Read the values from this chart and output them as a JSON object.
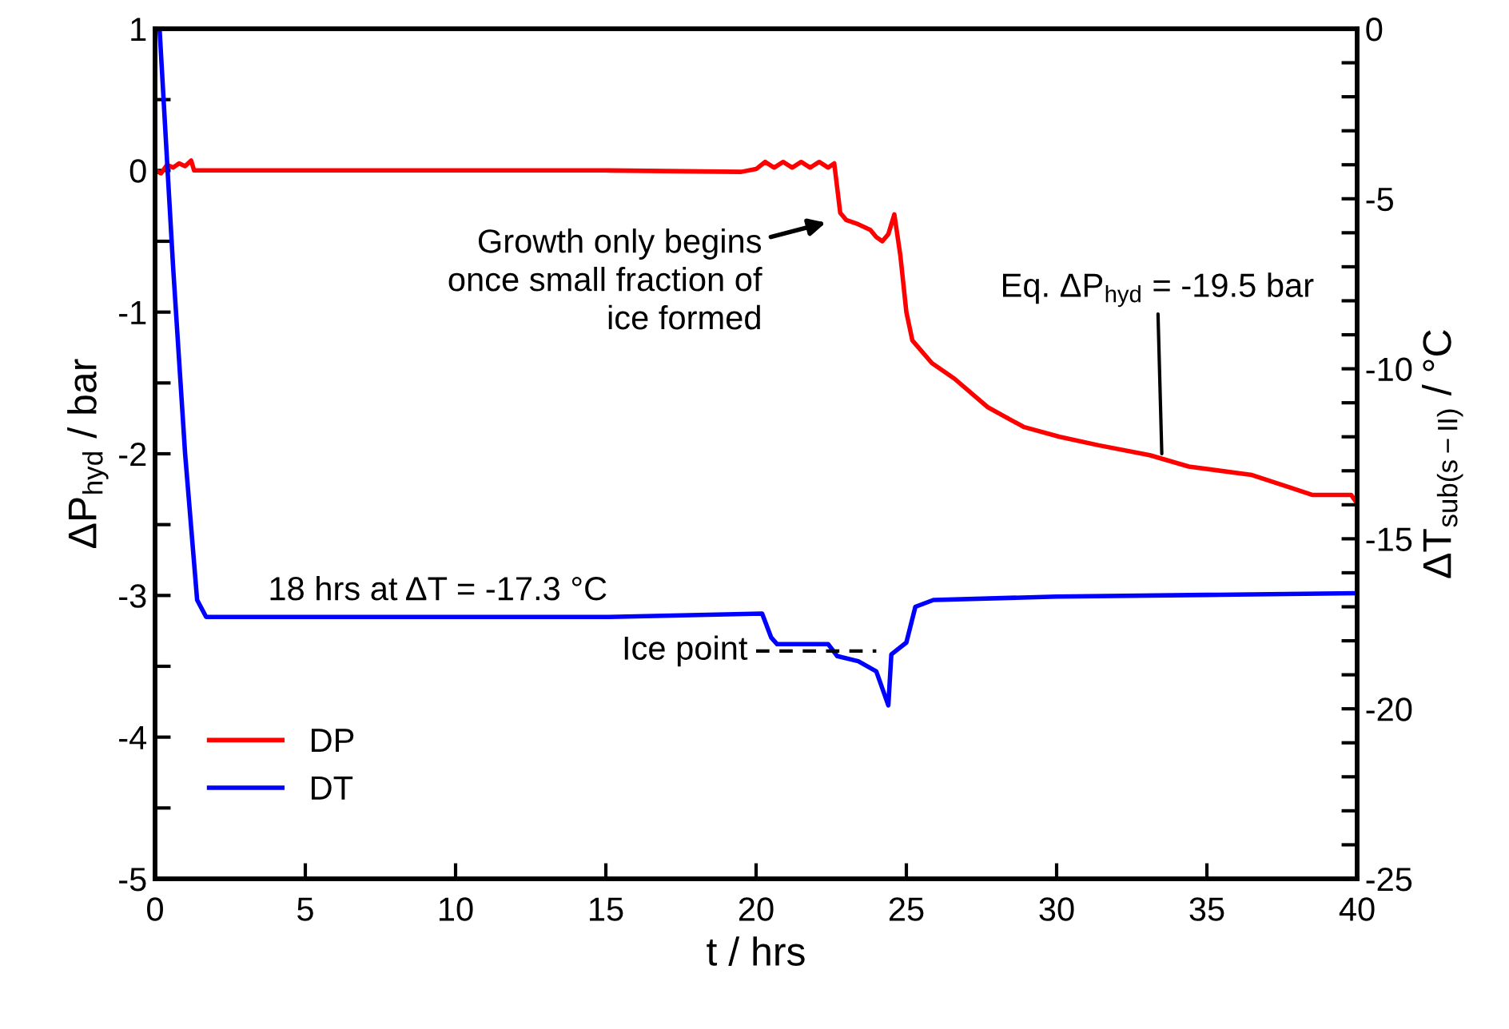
{
  "chart_data": {
    "type": "line",
    "xlabel": "t / hrs",
    "ylabel": "ΔP$_{hyd}$ / bar",
    "y2label": "ΔT$_{sub(s−II)}$ / °C",
    "xlim": [
      0,
      40
    ],
    "xticks": [
      0,
      5,
      10,
      15,
      20,
      25,
      30,
      35,
      40
    ],
    "ylim": [
      -5,
      1
    ],
    "yticks": [
      -5,
      -4,
      -3,
      -2,
      -1,
      0,
      1
    ],
    "y2lim": [
      -25,
      0
    ],
    "y2ticks": [
      -25,
      -20,
      -15,
      -10,
      -5,
      0
    ],
    "grid": false,
    "legend": "bottom left",
    "marker": "none",
    "line_style": "solid",
    "series": [
      {
        "name": "DP",
        "color": "#ff0000",
        "x": [
          0,
          0.2,
          0.4,
          0.6,
          0.8,
          1.0,
          1.2,
          1.3,
          5,
          10,
          15,
          19.5,
          20.0,
          20.3,
          20.6,
          20.9,
          21.2,
          21.5,
          21.8,
          22.1,
          22.4,
          22.6,
          22.8,
          23.0,
          23.4,
          23.8,
          24.0,
          24.2,
          24.4,
          24.6,
          24.8,
          25.0,
          25.2,
          25.85,
          26.6,
          27.7,
          28.9,
          30.1,
          31.4,
          33.1,
          34.4,
          36.5,
          37.8,
          38.5,
          39.8,
          40
        ],
        "values": [
          0,
          -0.02,
          0.04,
          0.02,
          0.05,
          0.03,
          0.07,
          0,
          0,
          0,
          0,
          -0.01,
          0.01,
          0.06,
          0.02,
          0.06,
          0.02,
          0.06,
          0.02,
          0.06,
          0.02,
          0.05,
          -0.3,
          -0.35,
          -0.38,
          -0.42,
          -0.47,
          -0.5,
          -0.45,
          -0.31,
          -0.6,
          -1.0,
          -1.2,
          -1.36,
          -1.47,
          -1.67,
          -1.81,
          -1.88,
          -1.94,
          -2.01,
          -2.09,
          -2.15,
          -2.24,
          -2.29,
          -2.29,
          -2.35
        ]
      },
      {
        "name": "DT",
        "color": "#0000ff",
        "axis": "y2",
        "x": [
          0.15,
          0.6,
          1.0,
          1.4,
          1.7,
          2,
          5,
          10,
          15,
          20.2,
          20.5,
          20.7,
          22.4,
          22.7,
          23.4,
          24.0,
          24.4,
          24.5,
          25.0,
          25.3,
          25.9,
          30,
          35,
          40
        ],
        "values": [
          0,
          -7,
          -12.5,
          -16.8,
          -17.3,
          -17.3,
          -17.3,
          -17.3,
          -17.3,
          -17.2,
          -17.9,
          -18.1,
          -18.1,
          -18.45,
          -18.6,
          -18.9,
          -19.9,
          -18.4,
          -18.05,
          -17.0,
          -16.8,
          -16.7,
          -16.65,
          -16.6
        ]
      },
      {
        "color": "#000000",
        "axis": "y2",
        "line_style": "dashed",
        "x": [
          20.0,
          24.0
        ],
        "values": [
          -18.3,
          -18.3
        ]
      }
    ],
    "annotations": [
      "Growth only begins\nonce small fraction of\nice formed",
      {
        "text": "Eq. ΔP$_{hyd}$ = -19.5 bar",
        "x": 33.5,
        "y": -2.0
      },
      "18 hrs at ΔT = -17.3 °C",
      "Ice point"
    ]
  }
}
